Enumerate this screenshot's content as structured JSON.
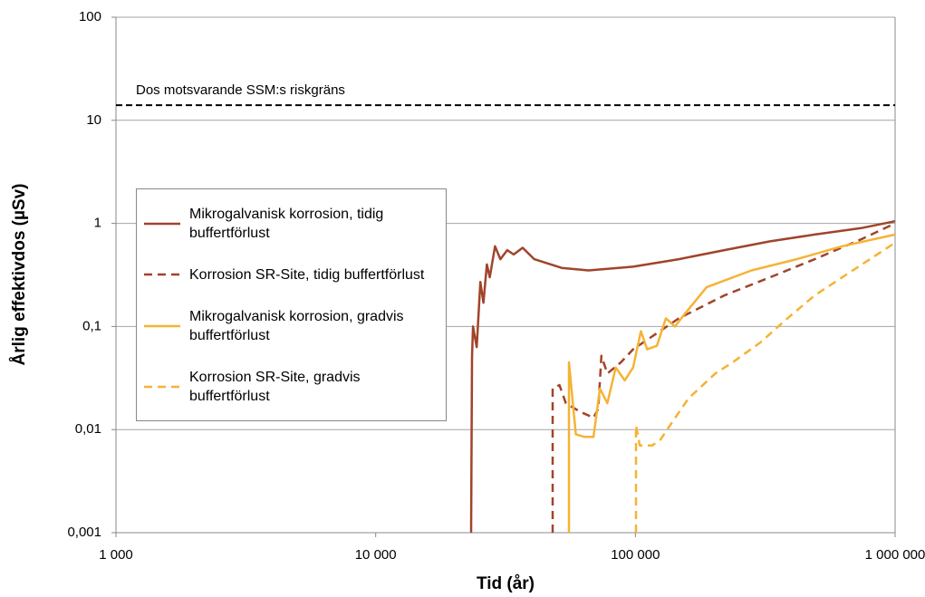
{
  "chart_data": {
    "type": "line",
    "x_label": "Tid (år)",
    "y_label": "Årlig effektivdos (µSv)",
    "log_x": true,
    "log_y": true,
    "grid": true,
    "xlim": [
      1000,
      1000000
    ],
    "ylim": [
      0.001,
      100
    ],
    "xticks": [
      {
        "value": 1000,
        "label": "1 000"
      },
      {
        "value": 10000,
        "label": "10 000"
      },
      {
        "value": 100000,
        "label": "100 000"
      },
      {
        "value": 1000000,
        "label": "1 000 000"
      }
    ],
    "yticks": [
      {
        "value": 0.001,
        "label": "0,001"
      },
      {
        "value": 0.01,
        "label": "0,01"
      },
      {
        "value": 0.1,
        "label": "0,1"
      },
      1,
      10,
      100
    ],
    "reference_line": {
      "value": 14,
      "label": "Dos motsvarande SSM:s riskgräns",
      "color": "#000000",
      "dashed": true
    },
    "legend": "left",
    "series": [
      {
        "name": "Mikrogalvanisk korrosion, tidig buffertförlust",
        "color": "#a0442a",
        "dashed": false,
        "x": [
          23300,
          23500,
          23700,
          24500,
          25300,
          26000,
          26800,
          27500,
          28800,
          30200,
          32100,
          34000,
          36800,
          40800,
          52000,
          66000,
          98000,
          147000,
          220000,
          330000,
          490000,
          740000,
          1000000
        ],
        "values": [
          0.001,
          0.05,
          0.1,
          0.063,
          0.27,
          0.17,
          0.4,
          0.3,
          0.6,
          0.45,
          0.55,
          0.5,
          0.58,
          0.45,
          0.37,
          0.35,
          0.38,
          0.45,
          0.55,
          0.67,
          0.78,
          0.9,
          1.05
        ]
      },
      {
        "name": "Korrosion SR-Site, tidig buffertförlust",
        "color": "#a0442a",
        "dashed": true,
        "x": [
          48000,
          48000,
          51000,
          54000,
          61000,
          69000,
          72000,
          74000,
          78000,
          88000,
          98000,
          116000,
          147000,
          220000,
          330000,
          490000,
          740000,
          1000000
        ],
        "values": [
          0.001,
          0.025,
          0.027,
          0.018,
          0.015,
          0.013,
          0.016,
          0.052,
          0.035,
          0.045,
          0.06,
          0.08,
          0.12,
          0.2,
          0.3,
          0.45,
          0.7,
          1.0
        ]
      },
      {
        "name": "Mikrogalvanisk korrosion, gradvis buffertförlust",
        "color": "#f5b335",
        "dashed": false,
        "x": [
          55500,
          55500,
          59000,
          63500,
          69000,
          73000,
          78000,
          84000,
          91000,
          98000,
          105000,
          111000,
          121000,
          131000,
          142000,
          154000,
          188000,
          280000,
          418000,
          626000,
          1000000
        ],
        "values": [
          0.001,
          0.045,
          0.009,
          0.0085,
          0.0085,
          0.025,
          0.018,
          0.04,
          0.03,
          0.04,
          0.09,
          0.06,
          0.065,
          0.12,
          0.1,
          0.13,
          0.24,
          0.35,
          0.45,
          0.6,
          0.78
        ]
      },
      {
        "name": "Korrosion SR-Site, gradvis buffertförlust",
        "color": "#f5b335",
        "dashed": true,
        "x": [
          100500,
          100500,
          104000,
          116000,
          125000,
          136000,
          160000,
          176000,
          203000,
          237000,
          303000,
          385000,
          490000,
          626000,
          800000,
          1000000
        ],
        "values": [
          0.001,
          0.011,
          0.007,
          0.007,
          0.008,
          0.011,
          0.02,
          0.025,
          0.035,
          0.045,
          0.07,
          0.12,
          0.2,
          0.3,
          0.45,
          0.65
        ]
      }
    ]
  }
}
